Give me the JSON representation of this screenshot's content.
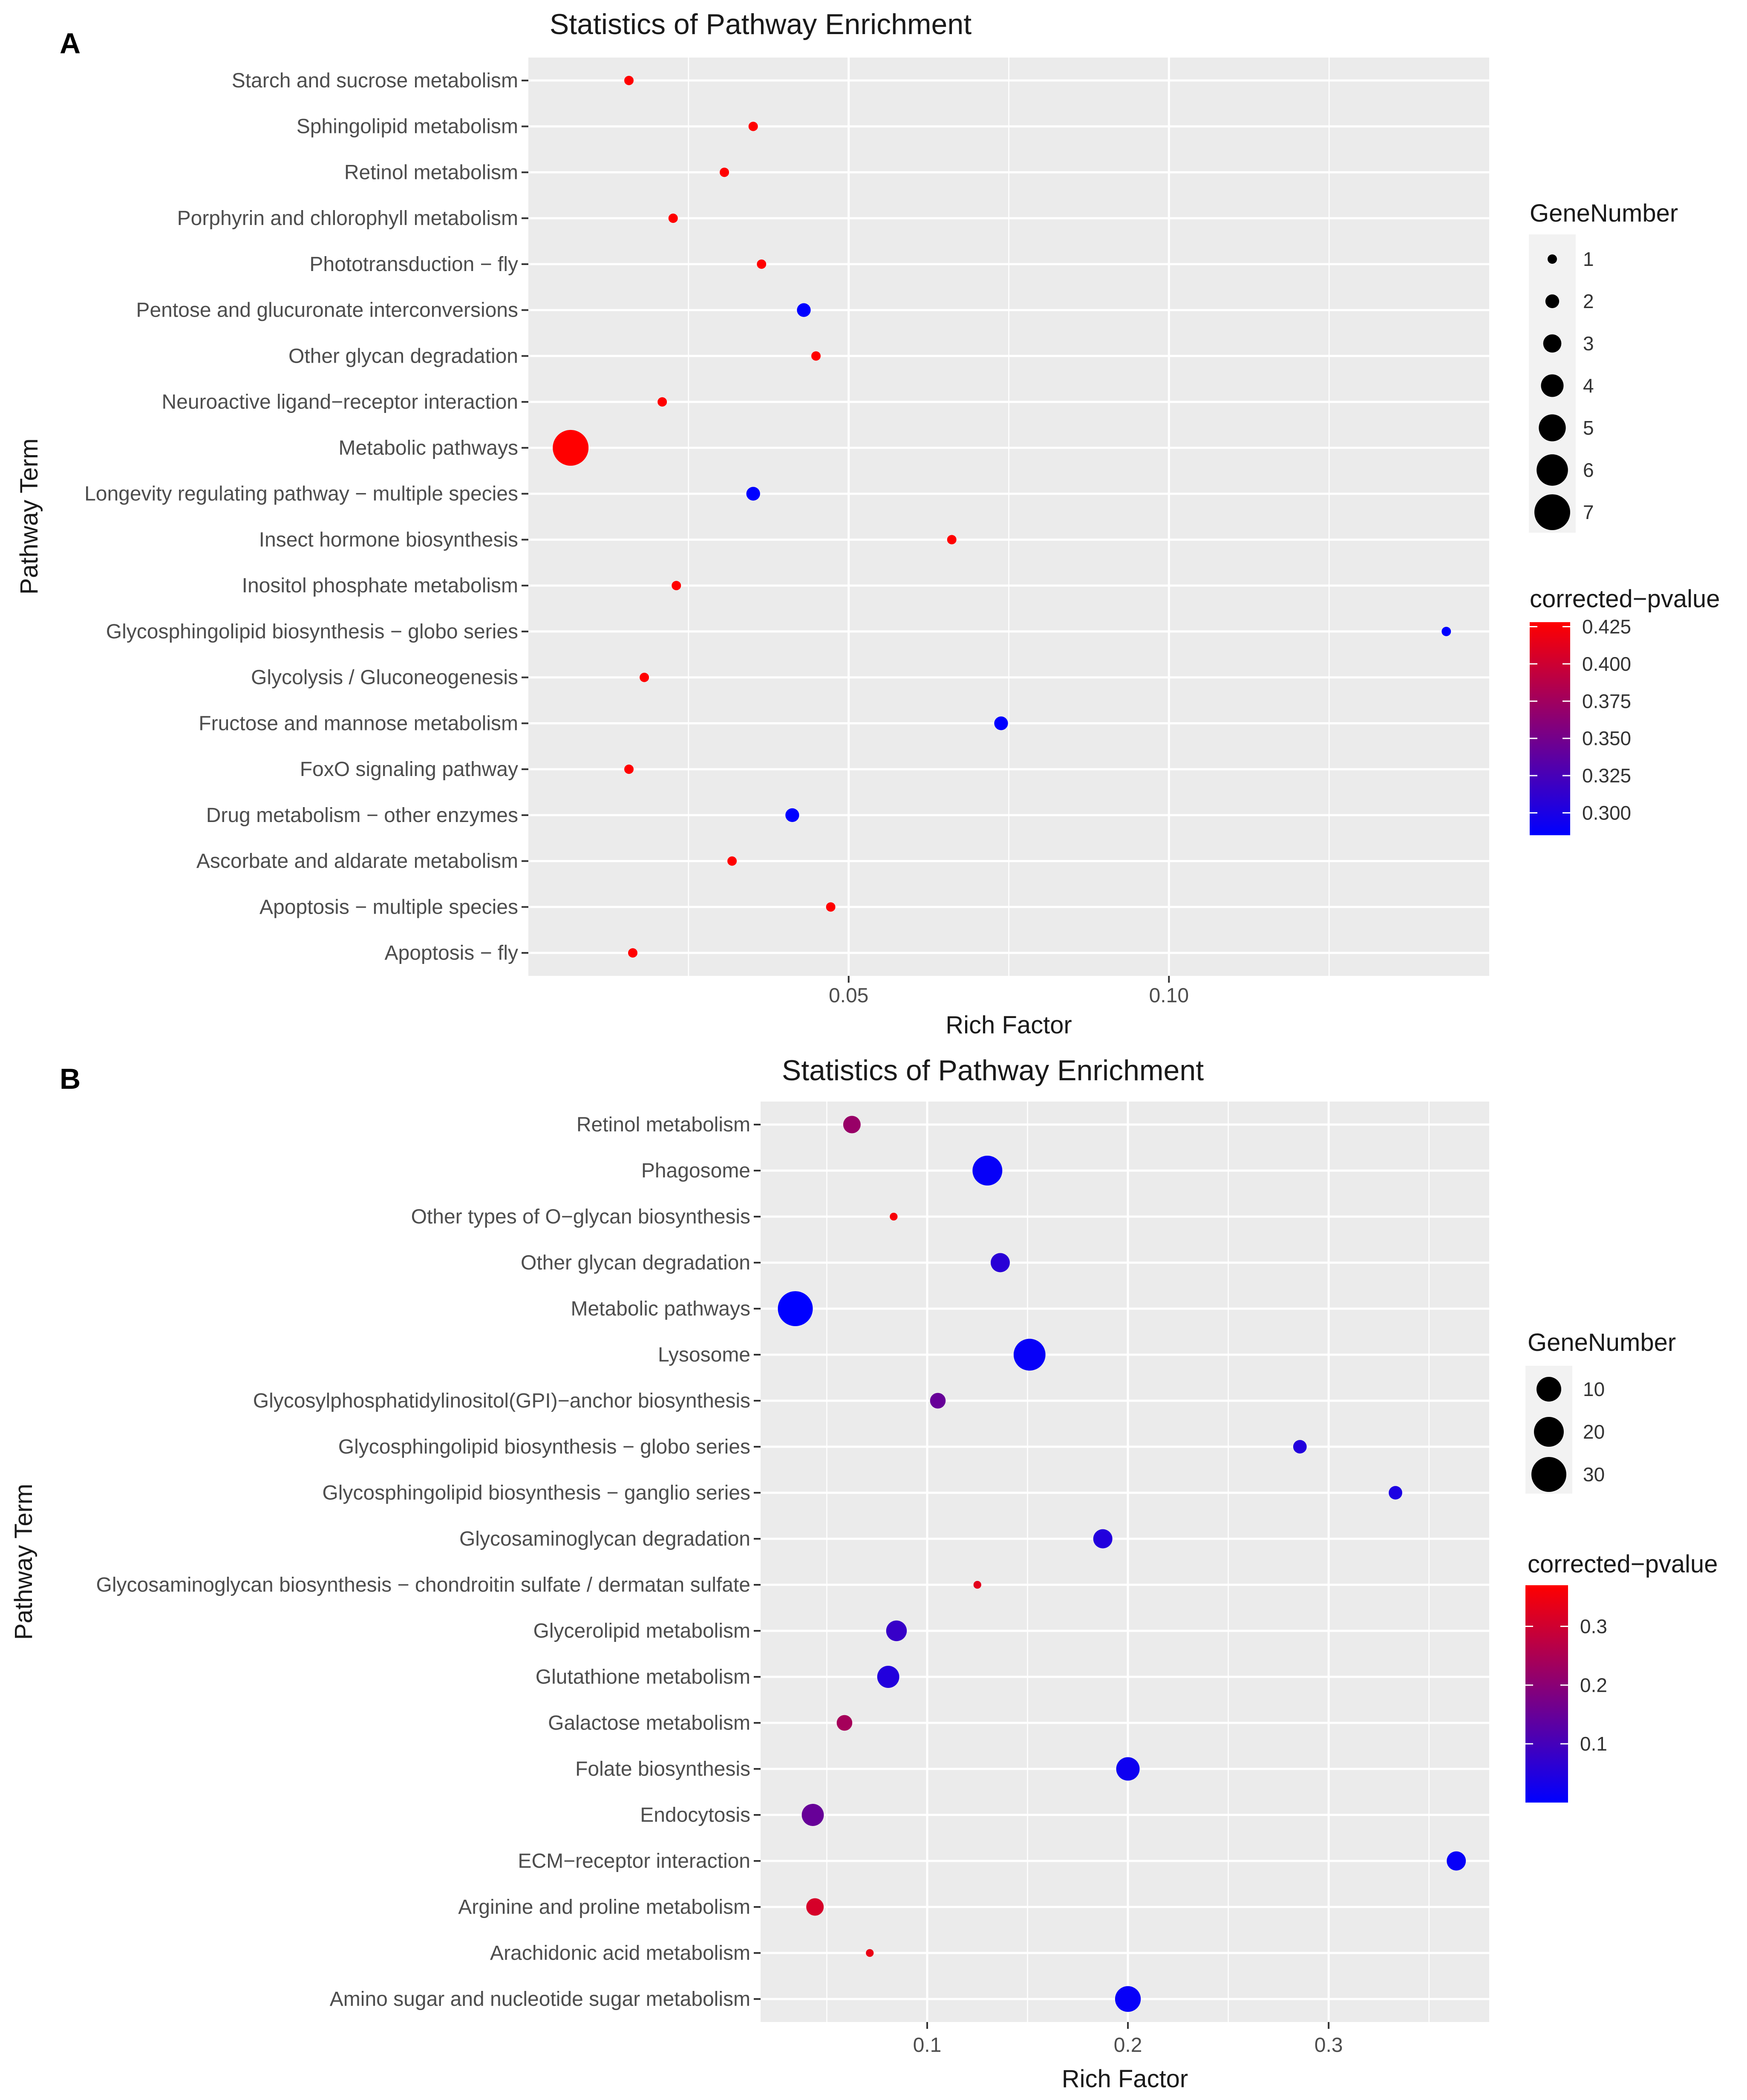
{
  "chart_data": [
    {
      "type": "scatter",
      "panel_label": "A",
      "title": "Statistics of Pathway Enrichment",
      "xlabel": "Rich Factor",
      "ylabel": "Pathway Term",
      "xlim": [
        0.0,
        0.15
      ],
      "xticks": [
        {
          "value": 0.05,
          "label": "0.05"
        },
        {
          "value": 0.1,
          "label": "0.10"
        }
      ],
      "xgrid": [
        0.025,
        0.05,
        0.075,
        0.1,
        0.125
      ],
      "size_legend": {
        "title": "GeneNumber",
        "values": [
          1,
          2,
          3,
          4,
          5,
          6,
          7
        ],
        "labels": [
          "1",
          "2",
          "3",
          "4",
          "5",
          "6",
          "7"
        ]
      },
      "color_legend": {
        "title": "corrected−pvalue",
        "range": [
          0.285,
          0.428
        ],
        "ticks": [
          0.425,
          0.4,
          0.375,
          0.35,
          0.325,
          0.3
        ],
        "labels": [
          "0.425",
          "0.400",
          "0.375",
          "0.350",
          "0.325",
          "0.300"
        ],
        "low_color": "#0000ff",
        "high_color": "#ff0000"
      },
      "points": [
        {
          "term": "Starch and sucrose metabolism",
          "rich_factor": 0.0157,
          "gene_number": 1,
          "pvalue": 0.428
        },
        {
          "term": "Sphingolipid metabolism",
          "rich_factor": 0.0351,
          "gene_number": 1,
          "pvalue": 0.428
        },
        {
          "term": "Retinol metabolism",
          "rich_factor": 0.0306,
          "gene_number": 1,
          "pvalue": 0.428
        },
        {
          "term": "Porphyrin and chlorophyll metabolism",
          "rich_factor": 0.0226,
          "gene_number": 1,
          "pvalue": 0.428
        },
        {
          "term": "Phototransduction − fly",
          "rich_factor": 0.0364,
          "gene_number": 1,
          "pvalue": 0.428
        },
        {
          "term": "Pentose and glucuronate interconversions",
          "rich_factor": 0.043,
          "gene_number": 2,
          "pvalue": 0.285
        },
        {
          "term": "Other glycan degradation",
          "rich_factor": 0.0449,
          "gene_number": 1,
          "pvalue": 0.428
        },
        {
          "term": "Neuroactive ligand−receptor interaction",
          "rich_factor": 0.0209,
          "gene_number": 1,
          "pvalue": 0.428
        },
        {
          "term": "Metabolic pathways",
          "rich_factor": 0.0066,
          "gene_number": 7,
          "pvalue": 0.428
        },
        {
          "term": "Longevity regulating pathway − multiple species",
          "rich_factor": 0.0351,
          "gene_number": 2,
          "pvalue": 0.285
        },
        {
          "term": "Insect hormone biosynthesis",
          "rich_factor": 0.0661,
          "gene_number": 1,
          "pvalue": 0.428
        },
        {
          "term": "Inositol phosphate metabolism",
          "rich_factor": 0.0231,
          "gene_number": 1,
          "pvalue": 0.428
        },
        {
          "term": "Glycosphingolipid biosynthesis − globo series",
          "rich_factor": 0.1433,
          "gene_number": 1,
          "pvalue": 0.285
        },
        {
          "term": "Glycolysis / Gluconeogenesis",
          "rich_factor": 0.0181,
          "gene_number": 1,
          "pvalue": 0.428
        },
        {
          "term": "Fructose and mannose metabolism",
          "rich_factor": 0.0738,
          "gene_number": 2,
          "pvalue": 0.285
        },
        {
          "term": "FoxO signaling pathway",
          "rich_factor": 0.0157,
          "gene_number": 1,
          "pvalue": 0.428
        },
        {
          "term": "Drug metabolism − other enzymes",
          "rich_factor": 0.0412,
          "gene_number": 2,
          "pvalue": 0.285
        },
        {
          "term": "Ascorbate and aldarate metabolism",
          "rich_factor": 0.0318,
          "gene_number": 1,
          "pvalue": 0.428
        },
        {
          "term": "Apoptosis − multiple species",
          "rich_factor": 0.0472,
          "gene_number": 1,
          "pvalue": 0.428
        },
        {
          "term": "Apoptosis − fly",
          "rich_factor": 0.0163,
          "gene_number": 1,
          "pvalue": 0.428
        }
      ]
    },
    {
      "type": "scatter",
      "panel_label": "B",
      "title": "Statistics of Pathway Enrichment",
      "xlabel": "Rich Factor",
      "ylabel": "Pathway Term",
      "xlim": [
        0.017,
        0.38
      ],
      "xticks": [
        {
          "value": 0.1,
          "label": "0.1"
        },
        {
          "value": 0.2,
          "label": "0.2"
        },
        {
          "value": 0.3,
          "label": "0.3"
        }
      ],
      "xgrid": [
        0.05,
        0.1,
        0.15,
        0.2,
        0.25,
        0.3,
        0.35
      ],
      "size_legend": {
        "title": "GeneNumber",
        "values": [
          10,
          20,
          30
        ],
        "labels": [
          "10",
          "20",
          "30"
        ]
      },
      "color_legend": {
        "title": "corrected−pvalue",
        "range": [
          0.0,
          0.37
        ],
        "ticks": [
          0.3,
          0.2,
          0.1
        ],
        "labels": [
          "0.3",
          "0.2",
          "0.1"
        ],
        "low_color": "#0000ff",
        "high_color": "#ff0000"
      },
      "points": [
        {
          "term": "Retinol metabolism",
          "rich_factor": 0.0625,
          "gene_number": 5,
          "pvalue": 0.22
        },
        {
          "term": "Phagosome",
          "rich_factor": 0.13,
          "gene_number": 20,
          "pvalue": 0.01
        },
        {
          "term": "Other types of O−glycan biosynthesis",
          "rich_factor": 0.0833,
          "gene_number": 1,
          "pvalue": 0.36
        },
        {
          "term": "Other glycan degradation",
          "rich_factor": 0.1364,
          "gene_number": 6,
          "pvalue": 0.06
        },
        {
          "term": "Metabolic pathways",
          "rich_factor": 0.0343,
          "gene_number": 38,
          "pvalue": 0.0
        },
        {
          "term": "Lysosome",
          "rich_factor": 0.151,
          "gene_number": 24,
          "pvalue": 0.01
        },
        {
          "term": "Glycosylphosphatidylinositol(GPI)−anchor biosynthesis",
          "rich_factor": 0.1053,
          "gene_number": 4,
          "pvalue": 0.15
        },
        {
          "term": "Glycosphingolipid biosynthesis − globo series",
          "rich_factor": 0.2857,
          "gene_number": 3,
          "pvalue": 0.05
        },
        {
          "term": "Glycosphingolipid biosynthesis − ganglio series",
          "rich_factor": 0.3333,
          "gene_number": 3,
          "pvalue": 0.04
        },
        {
          "term": "Glycosaminoglycan degradation",
          "rich_factor": 0.1875,
          "gene_number": 6,
          "pvalue": 0.05
        },
        {
          "term": "Glycosaminoglycan biosynthesis − chondroitin sulfate / dermatan sulfate",
          "rich_factor": 0.125,
          "gene_number": 1,
          "pvalue": 0.33
        },
        {
          "term": "Glycerolipid metabolism",
          "rich_factor": 0.0847,
          "gene_number": 7,
          "pvalue": 0.08
        },
        {
          "term": "Glutathione metabolism",
          "rich_factor": 0.0806,
          "gene_number": 8,
          "pvalue": 0.05
        },
        {
          "term": "Galactose metabolism",
          "rich_factor": 0.0588,
          "gene_number": 4,
          "pvalue": 0.24
        },
        {
          "term": "Folate biosynthesis",
          "rich_factor": 0.2,
          "gene_number": 9,
          "pvalue": 0.02
        },
        {
          "term": "Endocytosis",
          "rich_factor": 0.043,
          "gene_number": 8,
          "pvalue": 0.15
        },
        {
          "term": "ECM−receptor interaction",
          "rich_factor": 0.3636,
          "gene_number": 6,
          "pvalue": 0.01
        },
        {
          "term": "Arginine and proline metabolism",
          "rich_factor": 0.0441,
          "gene_number": 5,
          "pvalue": 0.31
        },
        {
          "term": "Arachidonic acid metabolism",
          "rich_factor": 0.0714,
          "gene_number": 1,
          "pvalue": 0.34
        },
        {
          "term": "Amino sugar and nucleotide sugar metabolism",
          "rich_factor": 0.2,
          "gene_number": 12,
          "pvalue": 0.01
        }
      ]
    }
  ]
}
